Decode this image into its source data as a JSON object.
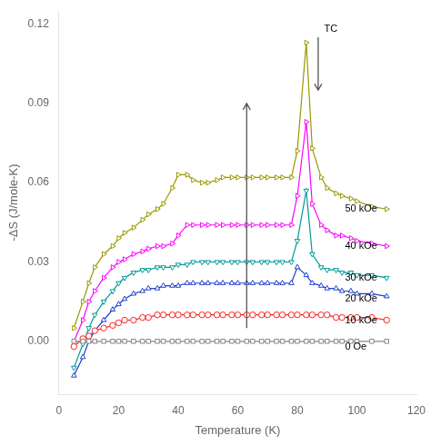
{
  "chart_data": {
    "type": "line",
    "xlabel": "Temperature (K)",
    "ylabel": "-ΔS (J/mole-K)",
    "xlim": [
      0,
      120
    ],
    "ylim": [
      -0.02,
      0.125
    ],
    "xticks": [
      0,
      20,
      40,
      60,
      80,
      100,
      120
    ],
    "yticks": [
      {
        "value": 0.0,
        "label": "0.00"
      },
      {
        "value": 0.03,
        "label": "0.03"
      },
      {
        "value": 0.06,
        "label": "0.06"
      },
      {
        "value": 0.09,
        "label": "0.09"
      },
      {
        "value": 0.12,
        "label": "0.12"
      }
    ],
    "grid": false,
    "x": [
      5,
      8,
      10,
      12,
      15,
      18,
      20,
      22,
      25,
      28,
      30,
      33,
      35,
      38,
      40,
      43,
      45,
      48,
      50,
      53,
      55,
      58,
      60,
      63,
      65,
      68,
      70,
      73,
      75,
      78,
      80,
      83,
      85,
      88,
      90,
      93,
      95,
      98,
      100,
      105,
      110
    ],
    "series": [
      {
        "name": "0 Oe",
        "color": "#888888",
        "marker": "square",
        "values": [
          0,
          0,
          0,
          0,
          0,
          0,
          0,
          0,
          0,
          0,
          0,
          0,
          0,
          0,
          0,
          0,
          0,
          0,
          0,
          0,
          0,
          0,
          0,
          0,
          0,
          0,
          0,
          0,
          0,
          0,
          0,
          0,
          0,
          0,
          0,
          0,
          0,
          0,
          0,
          0,
          0
        ]
      },
      {
        "name": "10 kOe",
        "color": "#ff2020",
        "marker": "circle",
        "values": [
          -0.002,
          0.001,
          0.002,
          0.004,
          0.005,
          0.006,
          0.007,
          0.008,
          0.008,
          0.009,
          0.009,
          0.01,
          0.01,
          0.01,
          0.01,
          0.01,
          0.01,
          0.01,
          0.01,
          0.01,
          0.01,
          0.01,
          0.01,
          0.01,
          0.01,
          0.01,
          0.01,
          0.01,
          0.01,
          0.01,
          0.01,
          0.01,
          0.01,
          0.01,
          0.01,
          0.009,
          0.009,
          0.009,
          0.009,
          0.009,
          0.008
        ]
      },
      {
        "name": "20 kOe",
        "color": "#2040cc",
        "marker": "triangle_up",
        "values": [
          -0.013,
          -0.006,
          0.0,
          0.004,
          0.008,
          0.012,
          0.014,
          0.016,
          0.018,
          0.019,
          0.02,
          0.02,
          0.021,
          0.021,
          0.021,
          0.022,
          0.022,
          0.022,
          0.022,
          0.022,
          0.022,
          0.022,
          0.022,
          0.022,
          0.022,
          0.022,
          0.022,
          0.022,
          0.022,
          0.022,
          0.028,
          0.025,
          0.022,
          0.021,
          0.02,
          0.02,
          0.019,
          0.019,
          0.018,
          0.018,
          0.017
        ]
      },
      {
        "name": "30 kOe",
        "color": "#009999",
        "marker": "triangle_down",
        "values": [
          -0.01,
          -0.001,
          0.005,
          0.01,
          0.015,
          0.019,
          0.022,
          0.024,
          0.026,
          0.027,
          0.027,
          0.028,
          0.028,
          0.028,
          0.029,
          0.029,
          0.03,
          0.03,
          0.03,
          0.03,
          0.03,
          0.03,
          0.03,
          0.03,
          0.03,
          0.03,
          0.03,
          0.03,
          0.03,
          0.03,
          0.038,
          0.057,
          0.033,
          0.028,
          0.027,
          0.027,
          0.026,
          0.026,
          0.025,
          0.025,
          0.024
        ]
      },
      {
        "name": "40 kOe",
        "color": "#ff00ff",
        "marker": "triangle_right",
        "values": [
          0.0,
          0.008,
          0.015,
          0.019,
          0.024,
          0.028,
          0.03,
          0.031,
          0.033,
          0.034,
          0.035,
          0.036,
          0.036,
          0.037,
          0.04,
          0.044,
          0.044,
          0.044,
          0.044,
          0.044,
          0.044,
          0.044,
          0.044,
          0.044,
          0.044,
          0.044,
          0.044,
          0.044,
          0.044,
          0.044,
          0.055,
          0.083,
          0.052,
          0.044,
          0.042,
          0.04,
          0.04,
          0.039,
          0.038,
          0.037,
          0.036
        ]
      },
      {
        "name": "50 kOe",
        "color": "#999900",
        "marker": "triangle_right",
        "values": [
          0.005,
          0.015,
          0.022,
          0.028,
          0.033,
          0.036,
          0.039,
          0.041,
          0.043,
          0.046,
          0.048,
          0.05,
          0.052,
          0.058,
          0.063,
          0.063,
          0.061,
          0.06,
          0.06,
          0.061,
          0.062,
          0.062,
          0.062,
          0.062,
          0.062,
          0.062,
          0.062,
          0.062,
          0.062,
          0.062,
          0.072,
          0.113,
          0.073,
          0.062,
          0.058,
          0.056,
          0.055,
          0.054,
          0.053,
          0.051,
          0.05
        ]
      }
    ],
    "annotations": [
      {
        "arrow": "up",
        "x": 63,
        "y_from": 0.005,
        "y_to": 0.09
      },
      {
        "arrow": "down",
        "x": 87,
        "y_from": 0.115,
        "y_to": 0.095
      },
      {
        "text": "TC",
        "x": 89,
        "y": 0.118
      },
      {
        "text": "50 kOe",
        "x": 96,
        "y": 0.05
      },
      {
        "text": "40 kOe",
        "x": 96,
        "y": 0.036
      },
      {
        "text": "30 kOe",
        "x": 96,
        "y": 0.024
      },
      {
        "text": "20 kOe",
        "x": 96,
        "y": 0.016
      },
      {
        "text": "10 kOe",
        "x": 96,
        "y": 0.008
      },
      {
        "text": "0 Oe",
        "x": 96,
        "y": -0.002
      }
    ]
  }
}
